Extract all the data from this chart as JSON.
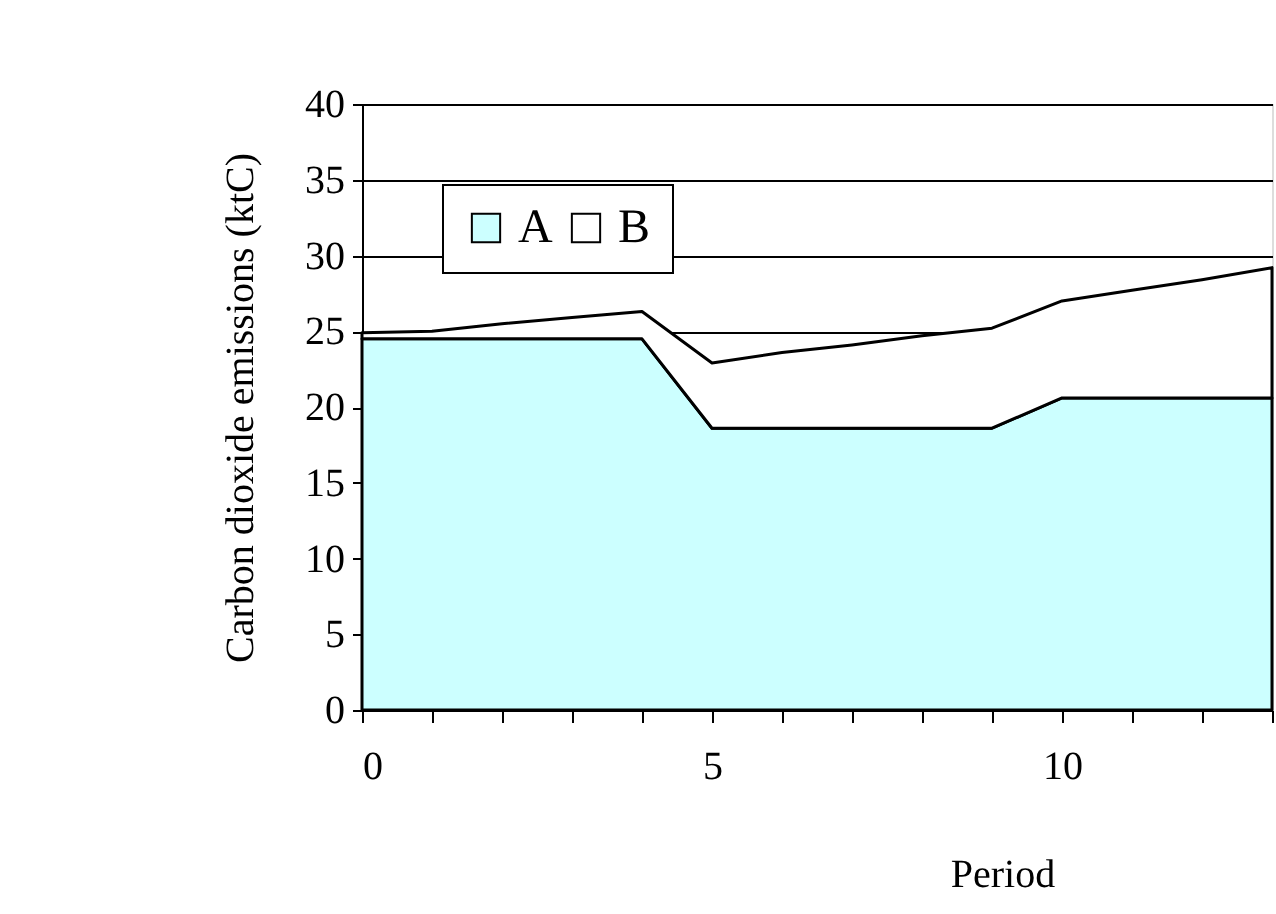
{
  "chart_data": {
    "type": "area",
    "stacked": true,
    "ylabel": "Carbon dioxide emissions (ktC)",
    "xlabel": "Period",
    "x": [
      0,
      1,
      2,
      3,
      4,
      5,
      6,
      7,
      8,
      9,
      10,
      11,
      12,
      13
    ],
    "series": [
      {
        "name": "A",
        "color": "#ccffff",
        "values": [
          24.5,
          24.5,
          24.5,
          24.5,
          24.5,
          18.6,
          18.6,
          18.6,
          18.6,
          18.6,
          20.6,
          20.6,
          20.6,
          20.6
        ]
      },
      {
        "name": "B",
        "color": "#ffffff",
        "values": [
          0.4,
          0.5,
          1.0,
          1.4,
          1.8,
          4.3,
          5.0,
          5.5,
          6.1,
          6.6,
          6.4,
          7.1,
          7.8,
          8.6
        ]
      }
    ],
    "xlim": [
      0,
      13
    ],
    "ylim": [
      0,
      40
    ],
    "xticks": [
      0,
      {
        "value": 1,
        "label": null
      },
      {
        "value": 2,
        "label": null
      },
      {
        "value": 3,
        "label": null
      },
      {
        "value": 4,
        "label": null
      },
      5,
      {
        "value": 6,
        "label": null
      },
      {
        "value": 7,
        "label": null
      },
      {
        "value": 8,
        "label": null
      },
      {
        "value": 9,
        "label": null
      },
      10,
      {
        "value": 11,
        "label": null
      },
      {
        "value": 12,
        "label": null
      },
      {
        "value": 13,
        "label": null
      }
    ],
    "yticks": [
      0,
      5,
      10,
      15,
      20,
      25,
      30,
      35,
      40
    ],
    "grid": "y",
    "legend": "top left"
  }
}
